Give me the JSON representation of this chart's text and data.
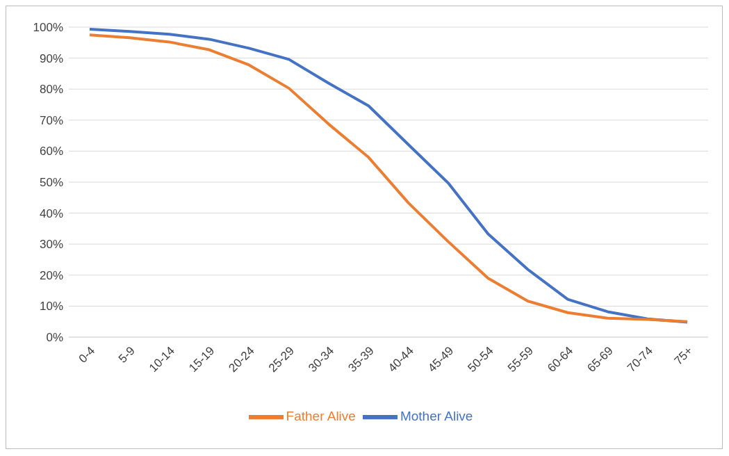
{
  "chart_data": {
    "type": "line",
    "categories": [
      "0-4",
      "5-9",
      "10-14",
      "15-19",
      "20-24",
      "25-29",
      "30-34",
      "35-39",
      "40-44",
      "45-49",
      "50-54",
      "55-59",
      "60-64",
      "65-69",
      "70-74",
      "75+"
    ],
    "series": [
      {
        "name": "Mother Alive",
        "color": "#4472c4",
        "values": [
          99.3,
          98.6,
          97.7,
          96.1,
          93.2,
          89.6,
          81.9,
          74.6,
          62.1,
          49.7,
          33.3,
          21.8,
          12.2,
          8.2,
          5.9,
          4.8
        ]
      },
      {
        "name": "Father Alive",
        "color": "#ed7d31",
        "values": [
          97.5,
          96.6,
          95.2,
          92.7,
          87.8,
          80.3,
          68.7,
          58.0,
          43.3,
          30.8,
          19.0,
          11.6,
          7.9,
          6.1,
          5.7,
          5.0
        ]
      }
    ],
    "ylim": [
      0,
      100
    ],
    "yticks": [
      {
        "value": 0,
        "label": "0%"
      },
      {
        "value": 10,
        "label": "10%"
      },
      {
        "value": 20,
        "label": "20%"
      },
      {
        "value": 30,
        "label": "30%"
      },
      {
        "value": 40,
        "label": "40%"
      },
      {
        "value": 50,
        "label": "50%"
      },
      {
        "value": 60,
        "label": "60%"
      },
      {
        "value": 70,
        "label": "70%"
      },
      {
        "value": 80,
        "label": "80%"
      },
      {
        "value": 90,
        "label": "90%"
      },
      {
        "value": 100,
        "label": "100%"
      }
    ],
    "grid": "y",
    "legend": "bottom",
    "marker": "none",
    "line_style": "solid"
  }
}
